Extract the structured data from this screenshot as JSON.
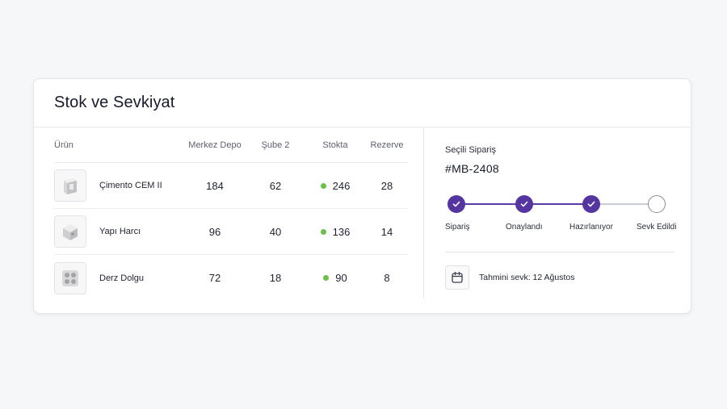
{
  "card": {
    "title": "Stok ve Sevkiyat"
  },
  "table": {
    "headers": {
      "product": "Ürün",
      "depo": "Merkez Depo",
      "sube": "Şube 2",
      "stock": "Stokta",
      "rezerve": "Rezerve"
    },
    "rows": [
      {
        "icon": "cement-bag-icon",
        "name": "Çimento CEM II",
        "depo": "184",
        "sube": "62",
        "stock": "246",
        "rezerve": "28"
      },
      {
        "icon": "mortar-bag-icon",
        "name": "Yapı Harcı",
        "depo": "96",
        "sube": "40",
        "stock": "136",
        "rezerve": "14"
      },
      {
        "icon": "grout-tile-icon",
        "name": "Derz Dolgu",
        "depo": "72",
        "sube": "18",
        "stock": "90",
        "rezerve": "8"
      }
    ]
  },
  "order": {
    "label": "Seçili Sipariş",
    "id": "#MB-2408",
    "steps": [
      {
        "label": "Sipariş",
        "done": true
      },
      {
        "label": "Onaylandı",
        "done": true
      },
      {
        "label": "Hazırlanıyor",
        "done": true
      },
      {
        "label": "Sevk Edildi",
        "done": false
      }
    ],
    "shipping_text": "Tahmini sevk: 12 Ağustos"
  },
  "colors": {
    "accent": "#55359f",
    "in_stock": "#6cc04a"
  }
}
